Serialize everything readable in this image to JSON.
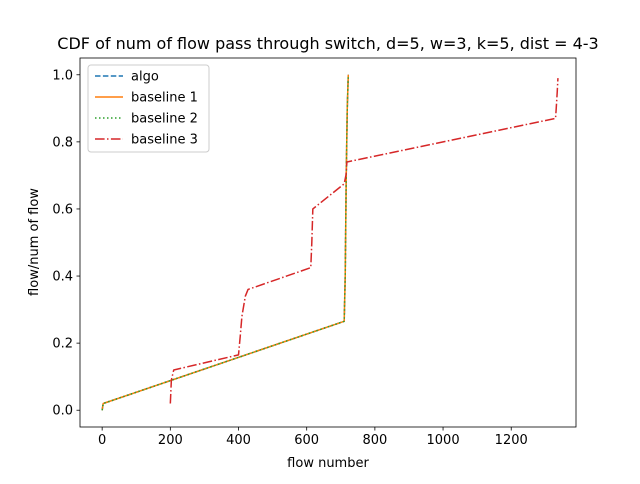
{
  "chart_data": {
    "type": "line",
    "title": "CDF of num of flow pass through switch, d=5, w=3, k=5, dist = 4-3",
    "xlabel": "flow number",
    "ylabel": "flow/num of flow",
    "xlim": [
      -65,
      1390
    ],
    "ylim": [
      -0.05,
      1.05
    ],
    "x_ticks": [
      0,
      200,
      400,
      600,
      800,
      1000,
      1200
    ],
    "x_tick_labels": [
      "0",
      "200",
      "400",
      "600",
      "800",
      "1000",
      "1200"
    ],
    "y_ticks": [
      0.0,
      0.2,
      0.4,
      0.6,
      0.8,
      1.0
    ],
    "y_tick_labels": [
      "0.0",
      "0.2",
      "0.4",
      "0.6",
      "0.8",
      "1.0"
    ],
    "grid": false,
    "legend_position": "top-left",
    "series": [
      {
        "name": "algo",
        "color": "#1f77b4",
        "dash": "dashed",
        "points": [
          [
            0,
            0.0
          ],
          [
            3,
            0.02
          ],
          [
            710,
            0.265
          ],
          [
            713,
            0.4
          ],
          [
            716,
            0.7
          ],
          [
            719,
            0.9
          ],
          [
            722,
            1.0
          ]
        ]
      },
      {
        "name": "baseline 1",
        "color": "#ff7f0e",
        "dash": "solid",
        "points": [
          [
            0,
            0.0
          ],
          [
            3,
            0.02
          ],
          [
            710,
            0.265
          ],
          [
            713,
            0.4
          ],
          [
            716,
            0.7
          ],
          [
            719,
            0.9
          ],
          [
            722,
            1.0
          ]
        ]
      },
      {
        "name": "baseline 2",
        "color": "#2ca02c",
        "dash": "dotted",
        "points": [
          [
            0,
            0.0
          ],
          [
            3,
            0.02
          ],
          [
            710,
            0.265
          ],
          [
            713,
            0.4
          ],
          [
            716,
            0.7
          ],
          [
            719,
            0.9
          ],
          [
            722,
            1.0
          ]
        ]
      },
      {
        "name": "baseline 3",
        "color": "#d62728",
        "dash": "dashdot",
        "points": [
          [
            200,
            0.02
          ],
          [
            203,
            0.09
          ],
          [
            210,
            0.12
          ],
          [
            400,
            0.165
          ],
          [
            405,
            0.22
          ],
          [
            410,
            0.28
          ],
          [
            420,
            0.34
          ],
          [
            428,
            0.36
          ],
          [
            612,
            0.425
          ],
          [
            615,
            0.5
          ],
          [
            618,
            0.6
          ],
          [
            710,
            0.675
          ],
          [
            715,
            0.7
          ],
          [
            718,
            0.74
          ],
          [
            1330,
            0.87
          ],
          [
            1332,
            0.9
          ],
          [
            1335,
            0.95
          ],
          [
            1337,
            0.99
          ]
        ]
      }
    ]
  }
}
